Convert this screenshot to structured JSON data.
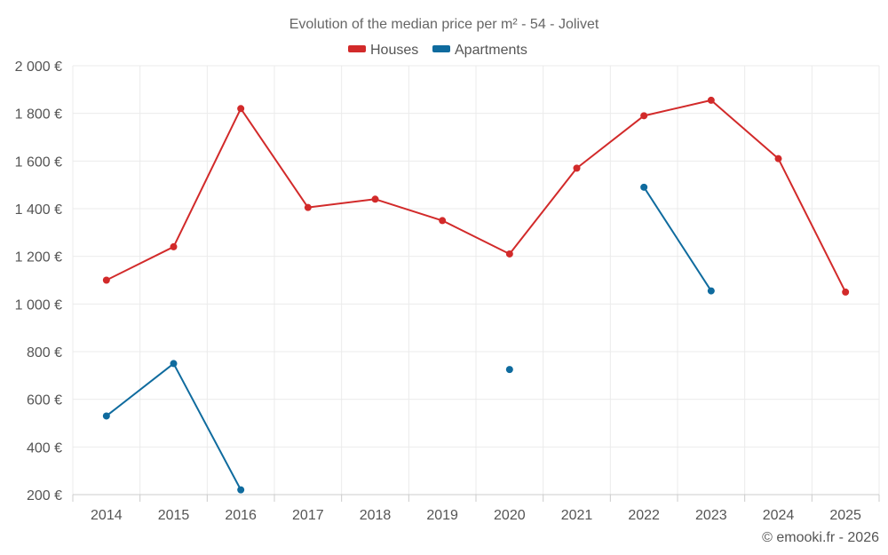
{
  "chart_data": {
    "type": "line",
    "title": "Evolution of the median price per m² - 54 - Jolivet",
    "categories": [
      "2014",
      "2015",
      "2016",
      "2017",
      "2018",
      "2019",
      "2020",
      "2021",
      "2022",
      "2023",
      "2024",
      "2025"
    ],
    "series": [
      {
        "name": "Houses",
        "color": "#d22a2a",
        "values": [
          1100,
          1240,
          1820,
          1405,
          1440,
          1350,
          1210,
          1570,
          1790,
          1855,
          1610,
          1050
        ]
      },
      {
        "name": "Apartments",
        "color": "#0f6b9e",
        "values": [
          530,
          750,
          220,
          null,
          null,
          null,
          725,
          null,
          1490,
          1055,
          null,
          null
        ]
      }
    ],
    "ylim": [
      200,
      2000
    ],
    "yticks": [
      200,
      400,
      600,
      800,
      1000,
      1200,
      1400,
      1600,
      1800,
      2000
    ],
    "ytick_labels": [
      "200 €",
      "400 €",
      "600 €",
      "800 €",
      "1 000 €",
      "1 200 €",
      "1 400 €",
      "1 600 €",
      "1 800 €",
      "2 000 €"
    ],
    "xlabel": "",
    "ylabel": "",
    "grid": true,
    "legend_position": "top-center"
  },
  "credit": "© emooki.fr - 2026"
}
